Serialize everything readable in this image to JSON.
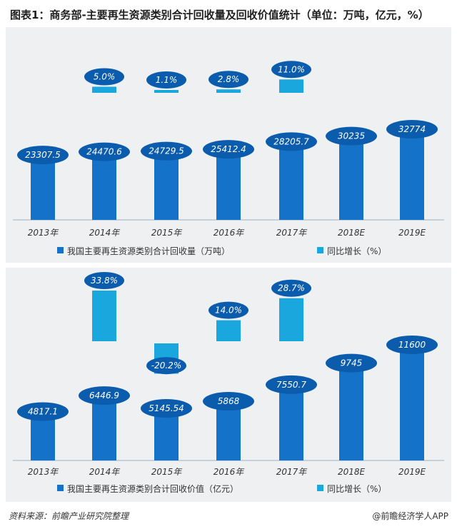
{
  "title": "图表1：商务部-主要再生资源类别合计回收量及回收价值统计（单位：万吨，亿元，%）",
  "footer": {
    "source": "资料来源：前瞻产业研究院整理",
    "brand": "@前瞻经济学人APP"
  },
  "colors": {
    "bar": "#1473c8",
    "growth": "#1aa7dd",
    "label_ellipse": "#0b5cad",
    "panel_bg": "#eef0f2"
  },
  "chart_data": [
    {
      "type": "bar",
      "categories": [
        "2013年",
        "2014年",
        "2015年",
        "2016年",
        "2017年",
        "2018E",
        "2019E"
      ],
      "series": [
        {
          "name": "我国主要再生资源类别合计回收量（万吨）",
          "values": [
            23307.5,
            24470.6,
            24729.5,
            25412.4,
            28205.7,
            30235,
            32774
          ],
          "labels": [
            "23307.5",
            "24470.6",
            "24729.5",
            "25412.4",
            "28205.7",
            "30235",
            "32774"
          ]
        },
        {
          "name": "同比增长（%）",
          "values": [
            null,
            5.0,
            1.1,
            2.8,
            11.0,
            null,
            null
          ],
          "labels": [
            "",
            "5.0%",
            "1.1%",
            "2.8%",
            "11.0%",
            "",
            ""
          ]
        }
      ],
      "legend": [
        "我国主要再生资源类别合计回收量（万吨）",
        "同比增长（%）"
      ],
      "legend_position": "bottom",
      "grid": false
    },
    {
      "type": "bar",
      "categories": [
        "2013年",
        "2014年",
        "2015年",
        "2016年",
        "2017年",
        "2018E",
        "2019E"
      ],
      "series": [
        {
          "name": "我国主要再生资源类别合计回收价值（亿元）",
          "values": [
            4817.1,
            6446.9,
            5145.54,
            5868,
            7550.7,
            9745,
            11600
          ],
          "labels": [
            "4817.1",
            "6446.9",
            "5145.54",
            "5868",
            "7550.7",
            "9745",
            "11600"
          ]
        },
        {
          "name": "同比增长（%）",
          "values": [
            null,
            33.8,
            -20.2,
            14.0,
            28.7,
            null,
            null
          ],
          "labels": [
            "",
            "33.8%",
            "-20.2%",
            "14.0%",
            "28.7%",
            "",
            ""
          ]
        }
      ],
      "legend": [
        "我国主要再生资源类别合计回收价值（亿元）",
        "同比增长（%）"
      ],
      "legend_position": "bottom",
      "grid": false
    }
  ]
}
